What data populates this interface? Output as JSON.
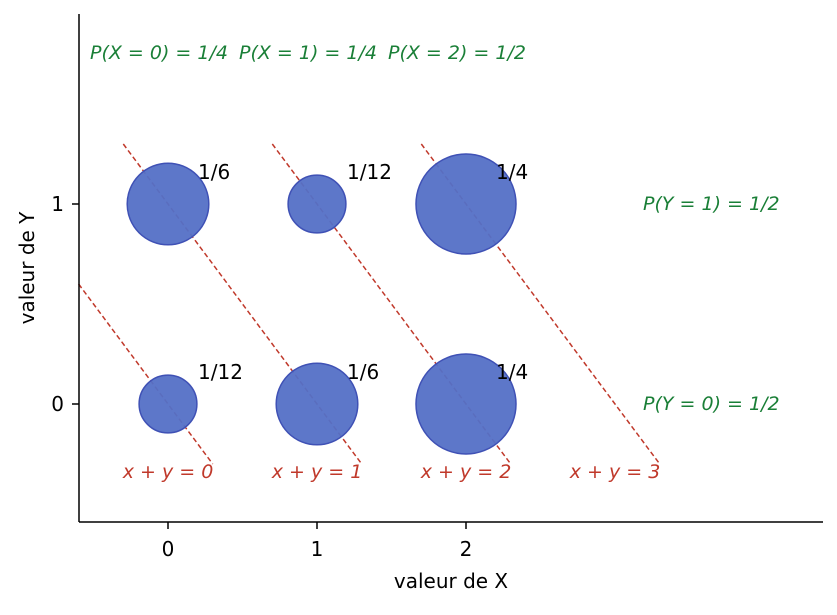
{
  "chart_data": {
    "type": "scatter",
    "title": "",
    "xlabel": "valeur de X",
    "ylabel": "valeur de Y",
    "x_ticks": [
      0,
      1,
      2
    ],
    "y_ticks": [
      0,
      1
    ],
    "xlim": [
      -0.6,
      4.4
    ],
    "ylim": [
      -0.6,
      1.95
    ],
    "points": [
      {
        "x": 0,
        "y": 1,
        "p": 0.16667,
        "label": "1/6"
      },
      {
        "x": 1,
        "y": 1,
        "p": 0.08333,
        "label": "1/12"
      },
      {
        "x": 2,
        "y": 1,
        "p": 0.25,
        "label": "1/4"
      },
      {
        "x": 0,
        "y": 0,
        "p": 0.08333,
        "label": "1/12"
      },
      {
        "x": 1,
        "y": 0,
        "p": 0.16667,
        "label": "1/6"
      },
      {
        "x": 2,
        "y": 0,
        "p": 0.25,
        "label": "1/4"
      }
    ],
    "marginals_x": [
      {
        "x": 0,
        "text": "P(X = 0) = 1/4"
      },
      {
        "x": 1,
        "text": "P(X = 1) = 1/4"
      },
      {
        "x": 2,
        "text": "P(X = 2) = 1/2"
      }
    ],
    "marginals_y": [
      {
        "y": 1,
        "text": "P(Y = 1) = 1/2"
      },
      {
        "y": 0,
        "text": "P(Y = 0) = 1/2"
      }
    ],
    "diagonals": [
      {
        "sum": 0,
        "label": "x + y = 0"
      },
      {
        "sum": 1,
        "label": "x + y = 1"
      },
      {
        "sum": 2,
        "label": "x + y = 2"
      },
      {
        "sum": 3,
        "label": "x + y = 3"
      }
    ],
    "colors": {
      "point_fill": "#5470c6",
      "point_stroke": "#3f51b5",
      "marginal": "#1a7f37",
      "diagonal": "#c0392b"
    }
  }
}
